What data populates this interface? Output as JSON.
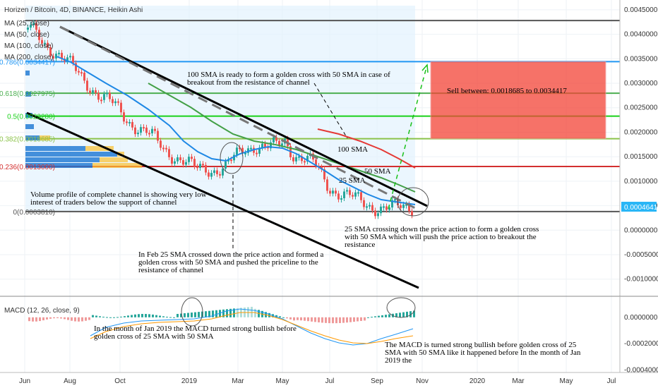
{
  "chart_data": {
    "type": "line",
    "title": "Horizen / Bitcoin, 4D, BINANCE, Heikin Ashi",
    "ma_labels": [
      "MA (25, close)",
      "MA (50, close)",
      "MA (100, close)",
      "MA (200, close)"
    ],
    "x_ticks": [
      "Jun",
      "Aug",
      "Oct",
      "2019",
      "Mar",
      "May",
      "Jul",
      "Sep",
      "Nov",
      "2020",
      "Mar",
      "May",
      "Jul"
    ],
    "price_ticks": [
      "0.0045000",
      "0.0040000",
      "0.0035000",
      "0.0030000",
      "0.0025000",
      "0.0020000",
      "0.0015000",
      "0.0010000",
      "0.0005000",
      "0.0000000",
      "-0.0005000",
      "-0.0010000"
    ],
    "price_ylim": [
      -0.00135,
      0.0047
    ],
    "last_price": "0.0004641",
    "fib_levels": [
      {
        "label": "0.786(0.0034417)",
        "value": 0.0034417,
        "color": "#2196f3"
      },
      {
        "label": "0.618(0.0027975)",
        "value": 0.0027975,
        "color": "#4caf50"
      },
      {
        "label": "0.5(0.0023280)",
        "value": 0.002328,
        "color": "#19d119"
      },
      {
        "label": "0.382(0.0018685)",
        "value": 0.0018685,
        "color": "#8bc34a"
      },
      {
        "label": "0.236(0.0013000)",
        "value": 0.0013,
        "color": "#d32f2f"
      },
      {
        "label": "0(0.0003810)",
        "value": 0.000381,
        "color": "#555555"
      }
    ],
    "top_line": 0.00428,
    "sell_zone": {
      "label": "Sell between: 0.0018685 to 0.0034417",
      "low": 0.0018685,
      "high": 0.0034417
    },
    "ma_series_labels": [
      "100 SMA",
      "50 SMA",
      "25 SMA"
    ],
    "annotations": [
      "100 SMA is ready to form a golden cross with 50 SMA in case of breakout from the resistance of channel",
      "Volume profile of complete channel is showing very low interest of traders below the support of channel",
      "In Feb 25 SMA crossed down the price action and formed a golden cross with 50 SMA and pushed the priceline to the resistance of channel",
      "25 SMA crossing down the price action to form a golden cross with 50 SMA which will push the price action to breakout the resistance"
    ],
    "macd": {
      "label": "MACD (12, 26, close, 9)",
      "ticks": [
        "0.0000000",
        "-0.0002000",
        "-0.0004000"
      ],
      "ylim": [
        -0.00042,
        0.00016
      ],
      "annotations": [
        "In the month of Jan 2019 the MACD turned strong bullish before golden cross of 25 SMA with 50 SMA",
        "The MACD is turned strong bullish before golden cross of 25 SMA with 50 SMA like it happened before In the month of Jan 2019 the"
      ]
    }
  }
}
